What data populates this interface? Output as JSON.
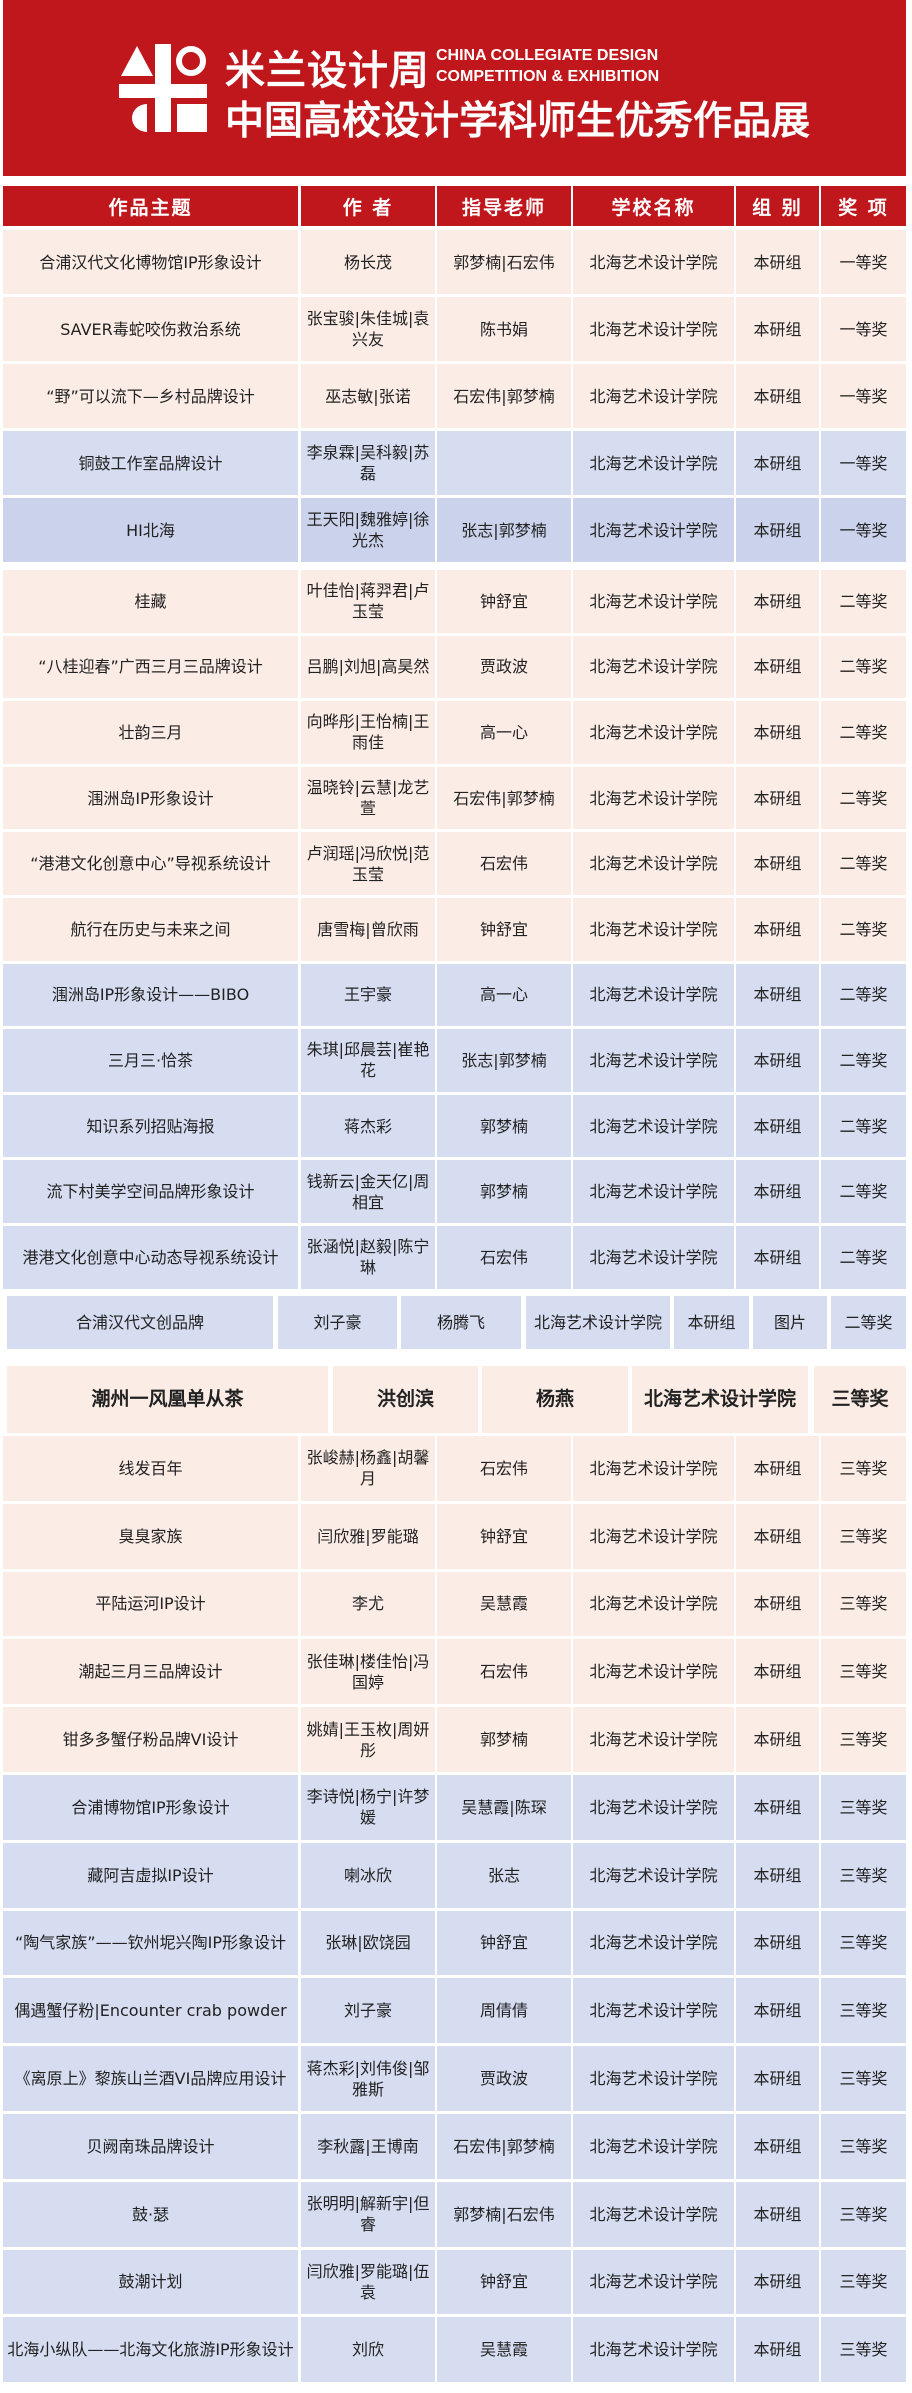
{
  "banner": {
    "title_cn": "米兰设计周",
    "title_en_line1": "CHINA COLLEGIATE DESIGN",
    "title_en_line2": "COMPETITION & EXHIBITION",
    "subtitle": "中国高校设计学科师生优秀作品展",
    "logo_icon": "milan-design-week-logo",
    "color": "#c0171d"
  },
  "table": {
    "headers": [
      "作品主题",
      "作 者",
      "指导老师",
      "学校名称",
      "组 别",
      "奖 项"
    ],
    "groups": [
      {
        "rows": [
          {
            "tone": "pink",
            "cells": [
              "合浦汉代文化博物馆IP形象设计",
              "杨长茂",
              "郭梦楠|石宏伟",
              "北海艺术设计学院",
              "本研组",
              "一等奖"
            ]
          },
          {
            "tone": "pink",
            "cells": [
              "SAVER毒蛇咬伤救治系统",
              "张宝骏|朱佳城|袁兴友",
              "陈书娟",
              "北海艺术设计学院",
              "本研组",
              "一等奖"
            ]
          },
          {
            "tone": "pink",
            "cells": [
              "“野”可以流下—乡村品牌设计",
              "巫志敏|张诺",
              "石宏伟|郭梦楠",
              "北海艺术设计学院",
              "本研组",
              "一等奖"
            ]
          },
          {
            "tone": "blue",
            "cells": [
              "铜鼓工作室品牌设计",
              "李泉霖|吴科毅|苏磊",
              "",
              "北海艺术设计学院",
              "本研组",
              "一等奖"
            ]
          },
          {
            "tone": "blue2",
            "cells": [
              "HI北海",
              "王天阳|魏雅婷|徐光杰",
              "张志|郭梦楠",
              "北海艺术设计学院",
              "本研组",
              "一等奖"
            ]
          }
        ]
      },
      {
        "rows": [
          {
            "tone": "pink",
            "cells": [
              "桂藏",
              "叶佳怡|蒋羿君|卢玉莹",
              "钟舒宜",
              "北海艺术设计学院",
              "本研组",
              "二等奖"
            ]
          },
          {
            "tone": "pink",
            "cells": [
              "“八桂迎春”广西三月三品牌设计",
              "吕鹏|刘旭|高昊然",
              "贾政波",
              "北海艺术设计学院",
              "本研组",
              "二等奖"
            ]
          },
          {
            "tone": "pink",
            "cells": [
              "壮韵三月",
              "向晔彤|王怡楠|王雨佳",
              "高一心",
              "北海艺术设计学院",
              "本研组",
              "二等奖"
            ]
          },
          {
            "tone": "pink",
            "cells": [
              "涠洲岛IP形象设计",
              "温晓铃|云慧|龙艺萱",
              "石宏伟|郭梦楠",
              "北海艺术设计学院",
              "本研组",
              "二等奖"
            ]
          },
          {
            "tone": "pink",
            "cells": [
              "“港港文化创意中心”导视系统设计",
              "卢润瑶|冯欣悦|范玉莹",
              "石宏伟",
              "北海艺术设计学院",
              "本研组",
              "二等奖"
            ]
          },
          {
            "tone": "pink",
            "cells": [
              "航行在历史与未来之间",
              "唐雪梅|曾欣雨",
              "钟舒宜",
              "北海艺术设计学院",
              "本研组",
              "二等奖"
            ]
          },
          {
            "tone": "blue",
            "cells": [
              "涠洲岛IP形象设计——BIBO",
              "王宇豪",
              "高一心",
              "北海艺术设计学院",
              "本研组",
              "二等奖"
            ]
          },
          {
            "tone": "blue",
            "cells": [
              "三月三·恰茶",
              "朱琪|邱晨芸|崔艳花",
              "张志|郭梦楠",
              "北海艺术设计学院",
              "本研组",
              "二等奖"
            ]
          },
          {
            "tone": "blue",
            "cells": [
              "知识系列招贴海报",
              "蒋杰彩",
              "郭梦楠",
              "北海艺术设计学院",
              "本研组",
              "二等奖"
            ]
          },
          {
            "tone": "blue",
            "cells": [
              "流下村美学空间品牌形象设计",
              "钱新云|金天亿|周相宜",
              "郭梦楠",
              "北海艺术设计学院",
              "本研组",
              "二等奖"
            ]
          },
          {
            "tone": "blue",
            "cells": [
              "港港文化创意中心动态导视系统设计",
              "张涵悦|赵毅|陈宁琳",
              "石宏伟",
              "北海艺术设计学院",
              "本研组",
              "二等奖"
            ]
          },
          {
            "tone": "blue",
            "layout": "seven",
            "cells": [
              "合浦汉代文创品牌",
              "刘子豪",
              "杨腾飞",
              "北海艺术设计学院",
              "本研组",
              "图片",
              "二等奖"
            ]
          }
        ]
      },
      {
        "rows": [
          {
            "tone": "pink",
            "layout": "five",
            "cells": [
              "潮州一风凰单从茶",
              "洪创滨",
              "杨燕",
              "北海艺术设计学院",
              "三等奖"
            ]
          },
          {
            "tone": "pink",
            "cells": [
              "线发百年",
              "张峻赫|杨鑫|胡馨月",
              "石宏伟",
              "北海艺术设计学院",
              "本研组",
              "三等奖"
            ]
          },
          {
            "tone": "pink",
            "cells": [
              "臭臭家族",
              "闫欣雅|罗能璐",
              "钟舒宜",
              "北海艺术设计学院",
              "本研组",
              "三等奖"
            ]
          },
          {
            "tone": "pink",
            "cells": [
              "平陆运河IP设计",
              "李尤",
              "吴慧霞",
              "北海艺术设计学院",
              "本研组",
              "三等奖"
            ]
          },
          {
            "tone": "pink",
            "cells": [
              "潮起三月三品牌设计",
              "张佳琳|楼佳怡|冯国婷",
              "石宏伟",
              "北海艺术设计学院",
              "本研组",
              "三等奖"
            ]
          },
          {
            "tone": "pink",
            "cells": [
              "钳多多蟹仔粉品牌VI设计",
              "姚婧|王玉枚|周妍彤",
              "郭梦楠",
              "北海艺术设计学院",
              "本研组",
              "三等奖"
            ]
          },
          {
            "tone": "blue",
            "cells": [
              "合浦博物馆IP形象设计",
              "李诗悦|杨宁|许梦媛",
              "吴慧霞|陈琛",
              "北海艺术设计学院",
              "本研组",
              "三等奖"
            ]
          },
          {
            "tone": "blue",
            "cells": [
              "藏阿吉虚拟IP设计",
              "喇冰欣",
              "张志",
              "北海艺术设计学院",
              "本研组",
              "三等奖"
            ]
          },
          {
            "tone": "blue",
            "cells": [
              "“陶气家族”——钦州坭兴陶IP形象设计",
              "张琳|欧饶园",
              "钟舒宜",
              "北海艺术设计学院",
              "本研组",
              "三等奖"
            ]
          },
          {
            "tone": "blue",
            "cells": [
              "偶遇蟹仔粉|Encounter crab powder",
              "刘子豪",
              "周倩倩",
              "北海艺术设计学院",
              "本研组",
              "三等奖"
            ]
          },
          {
            "tone": "blue",
            "cells": [
              "《离原上》黎族山兰酒VI品牌应用设计",
              "蒋杰彩|刘伟俊|邹雅斯",
              "贾政波",
              "北海艺术设计学院",
              "本研组",
              "三等奖"
            ]
          },
          {
            "tone": "blue",
            "cells": [
              "贝阙南珠品牌设计",
              "李秋露|王博南",
              "石宏伟|郭梦楠",
              "北海艺术设计学院",
              "本研组",
              "三等奖"
            ]
          },
          {
            "tone": "blue",
            "cells": [
              "鼓·瑟",
              "张明明|解新宇|但睿",
              "郭梦楠|石宏伟",
              "北海艺术设计学院",
              "本研组",
              "三等奖"
            ]
          },
          {
            "tone": "blue",
            "cells": [
              "鼓潮计划",
              "闫欣雅|罗能璐|伍袁",
              "钟舒宜",
              "北海艺术设计学院",
              "本研组",
              "三等奖"
            ]
          },
          {
            "tone": "blue",
            "cells": [
              "北海小纵队——北海文化旅游IP形象设计",
              "刘欣",
              "吴慧霞",
              "北海艺术设计学院",
              "本研组",
              "三等奖"
            ]
          }
        ]
      }
    ]
  }
}
